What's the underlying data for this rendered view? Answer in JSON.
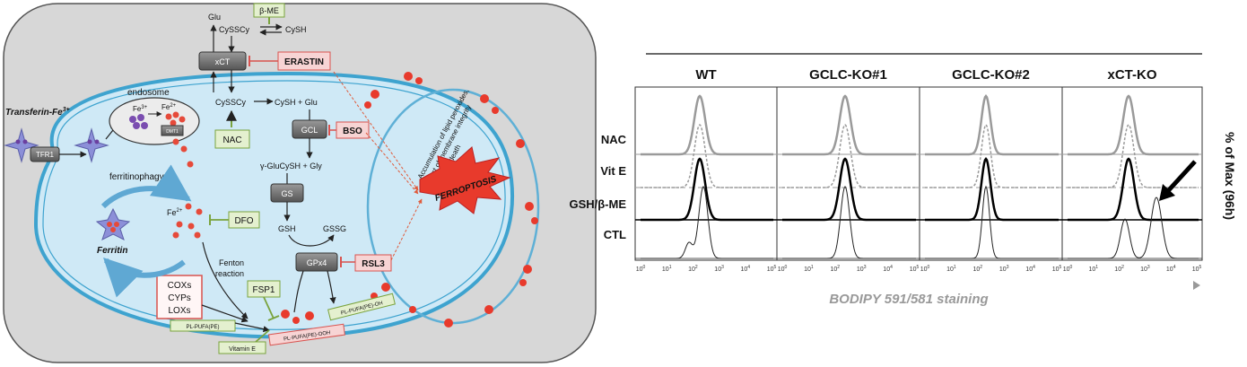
{
  "pathway": {
    "metabolites": {
      "glu": "Glu",
      "cyssy_out": "CySSCy",
      "cysh_out": "CySH",
      "cyssy_in": "CySSCy",
      "cysh_glu": "CySH + Glu",
      "gamma": "γ-GluCySH + Gly",
      "gsh": "GSH",
      "gssg": "GSSG"
    },
    "transporter": "xCT",
    "enzymes": {
      "gcl": "GCL",
      "gs": "GS",
      "gpx4": "GPx4",
      "tfr1": "TFR1",
      "dmt1": "DMT1"
    },
    "activators": {
      "bme": "β-ME",
      "nac": "NAC",
      "fsp1": "FSP1",
      "vite": "Vitamin E"
    },
    "inhibitors": {
      "erastin": "ERASTIN",
      "bso": "BSO",
      "dfo": "DFO",
      "rsl3": "RSL3"
    },
    "labels": {
      "transferrin": "Transferin-Fe",
      "transferrin_sup": "3+",
      "endosome": "endosome",
      "fe3": "Fe",
      "fe3_sup": "3+",
      "fe2_endo": "Fe",
      "fe2_endo_sup": "2+",
      "ferritinophagy": "ferritinophagy",
      "ferritin": "Ferritin",
      "fe2": "Fe",
      "fe2_sup": "2+",
      "fenton1": "Fenton",
      "fenton2": "reaction",
      "cox": "COXs",
      "cyp": "CYPs",
      "lox": "LOXs",
      "pl_pufa": "PL-PUFA(PE)",
      "pl_pufa_ooh": "PL-PUFA(PE)-OOH",
      "pl_pufa_oh": "PL-PUFA(PE)-OH",
      "accum1": "Accumulation of lipid peroxides,",
      "accum2": "lost of membrane integrity",
      "accum3": "& cell death",
      "ferroptosis": "FERROPTOSIS"
    },
    "colors": {
      "panel": "#d7d7d7",
      "cell": "#cfe9f6",
      "membrane": "#3ea3cf",
      "enzyme": "#6f6f6f",
      "activator_fill": "#e4f0cf",
      "activator_stroke": "#7aa33d",
      "inhibitor_fill": "#f7d4d4",
      "inhibitor_stroke": "#d9534f",
      "iron": "#e64a3a",
      "ferroptosis": "#e83a2c"
    }
  },
  "flow": {
    "columns": [
      "WT",
      "GCLC-KO#1",
      "GCLC-KO#2",
      "xCT-KO"
    ],
    "rows": [
      "NAC",
      "Vit E",
      "GSH/β-ME",
      "CTL"
    ],
    "x_label": "BODIPY 591/581 staining",
    "y_label": "% of Max (96h)",
    "tick_base": "10",
    "tick_exponents": [
      "0",
      "1",
      "2",
      "3",
      "4",
      "5"
    ],
    "colors": {
      "nac": "#9a9a9a",
      "vite": "#9a9a9a",
      "gsh": "#000000",
      "ctl": "#222222",
      "xlabel": "#999999"
    }
  }
}
